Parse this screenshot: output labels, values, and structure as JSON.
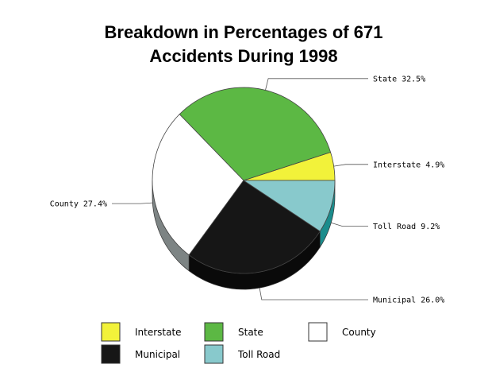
{
  "chart_data": {
    "type": "pie",
    "title_lines": [
      "Breakdown in Percentages of 671",
      "Accidents During 1998"
    ],
    "slices": [
      {
        "name": "Interstate",
        "value": 4.9,
        "label": "Interstate 4.9%",
        "color": "#f2f23a",
        "side_color": "#b8b828"
      },
      {
        "name": "State",
        "value": 32.5,
        "label": "State 32.5%",
        "color": "#5cb844",
        "side_color": "#3d7f2e"
      },
      {
        "name": "County",
        "value": 27.4,
        "label": "County 27.4%",
        "color": "#ffffff",
        "side_color": "#7d8484"
      },
      {
        "name": "Municipal",
        "value": 26.0,
        "label": "Municipal 26.0%",
        "color": "#161616",
        "side_color": "#0a0a0a"
      },
      {
        "name": "Toll Road",
        "value": 9.2,
        "label": "Toll Road 9.2%",
        "color": "#88c9cc",
        "side_color": "#1b8c8c"
      }
    ],
    "legend": {
      "placement": "bottom",
      "items": [
        {
          "name": "Interstate",
          "color": "#f2f23a"
        },
        {
          "name": "State",
          "color": "#5cb844"
        },
        {
          "name": "County",
          "color": "#ffffff"
        },
        {
          "name": "Municipal",
          "color": "#161616"
        },
        {
          "name": "Toll Road",
          "color": "#88c9cc"
        }
      ]
    }
  }
}
